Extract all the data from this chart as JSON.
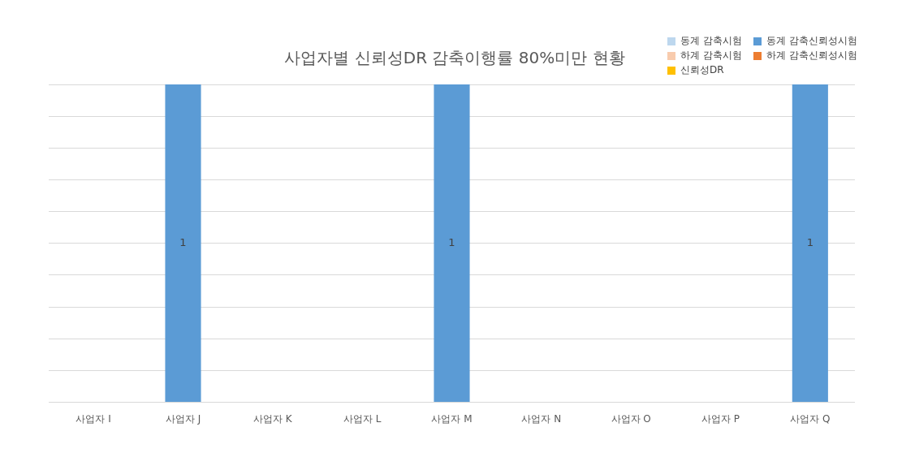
{
  "chart_data": {
    "type": "bar",
    "title": "사업자별 신뢰성DR 감축이행률 80%미만 현황",
    "categories": [
      "사업자 I",
      "사업자 J",
      "사업자 K",
      "사업자 L",
      "사업자 M",
      "사업자 N",
      "사업자 O",
      "사업자 P",
      "사업자 Q"
    ],
    "series": [
      {
        "name": "동계 감축시험",
        "color": "#bdd7ee",
        "values": [
          null,
          null,
          null,
          null,
          null,
          null,
          null,
          null,
          null
        ]
      },
      {
        "name": "동계 감축신뢰성시험",
        "color": "#5b9bd5",
        "values": [
          null,
          1,
          null,
          null,
          1,
          null,
          null,
          null,
          1
        ]
      },
      {
        "name": "하계 감축시험",
        "color": "#f8cbad",
        "values": [
          null,
          null,
          null,
          null,
          null,
          null,
          null,
          null,
          null
        ]
      },
      {
        "name": "하계 감축신뢰성시험",
        "color": "#ed7d31",
        "values": [
          null,
          null,
          null,
          null,
          null,
          null,
          null,
          null,
          null
        ]
      },
      {
        "name": "신뢰성DR",
        "color": "#ffc000",
        "values": [
          null,
          null,
          null,
          null,
          null,
          null,
          null,
          null,
          null
        ]
      }
    ],
    "data_labels": true,
    "grid": "y",
    "legend": "top right",
    "tick_labels": "x"
  }
}
